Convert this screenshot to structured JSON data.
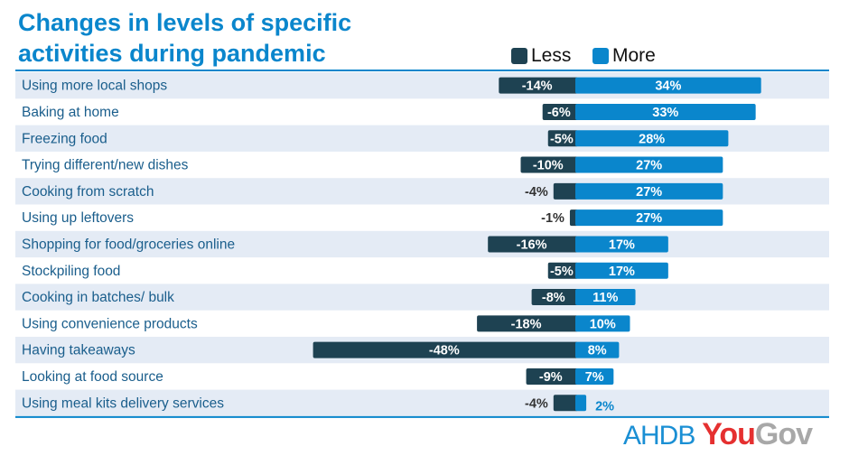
{
  "title": "Changes in levels of specific activities during pandemic",
  "colors": {
    "less": "#1e4252",
    "more": "#0a86cc",
    "band": "#e4ebf5",
    "axis": "#0a86cc"
  },
  "logo": {
    "part1": "AHDB",
    "part2": "You",
    "part3": "Gov"
  },
  "chart_data": {
    "type": "bar",
    "title": "Changes in levels of specific activities during pandemic",
    "legend": [
      "Less",
      "More"
    ],
    "legend_position": "top-right",
    "categories": [
      "Using more local shops",
      "Baking at home",
      "Freezing food",
      "Trying different/new dishes",
      "Cooking from scratch",
      "Using up leftovers",
      "Shopping for food/groceries online",
      "Stockpiling food",
      "Cooking in batches/ bulk",
      "Using convenience products",
      "Having takeaways",
      "Looking at food source",
      "Using meal kits delivery services"
    ],
    "series": [
      {
        "name": "Less",
        "values": [
          -14,
          -6,
          -5,
          -10,
          -4,
          -1,
          -16,
          -5,
          -8,
          -18,
          -48,
          -9,
          -4
        ]
      },
      {
        "name": "More",
        "values": [
          34,
          33,
          28,
          27,
          27,
          27,
          17,
          17,
          11,
          10,
          8,
          7,
          2
        ]
      }
    ],
    "unit": "%"
  }
}
